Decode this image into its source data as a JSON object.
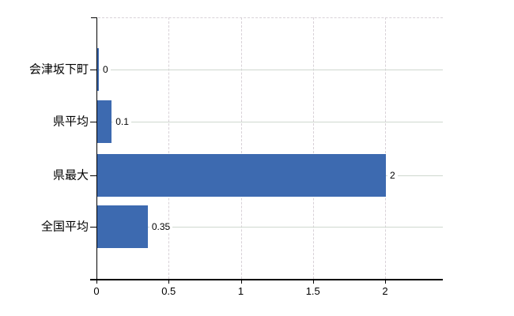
{
  "chart_data": {
    "type": "bar",
    "orientation": "horizontal",
    "title": "",
    "xlabel": "",
    "ylabel": "",
    "categories": [
      "会津坂下町",
      "県平均",
      "県最大",
      "全国平均"
    ],
    "values": [
      0,
      0.1,
      2,
      0.35
    ],
    "value_labels": [
      "0",
      "0.1",
      "2",
      "0.35"
    ],
    "x_ticks": [
      0,
      0.5,
      1,
      1.5,
      2
    ],
    "x_tick_labels": [
      "0",
      "0.5",
      "1",
      "1.5",
      "2"
    ],
    "xlim": [
      0,
      2.4
    ],
    "grid": true,
    "legend": false,
    "colors": {
      "bar": "#3d6ab0",
      "axis": "#000000",
      "grid_vertical": "#d8d1d7",
      "grid_horizontal": "#cfd8cf",
      "text": "#000000",
      "background": "#ffffff"
    }
  }
}
